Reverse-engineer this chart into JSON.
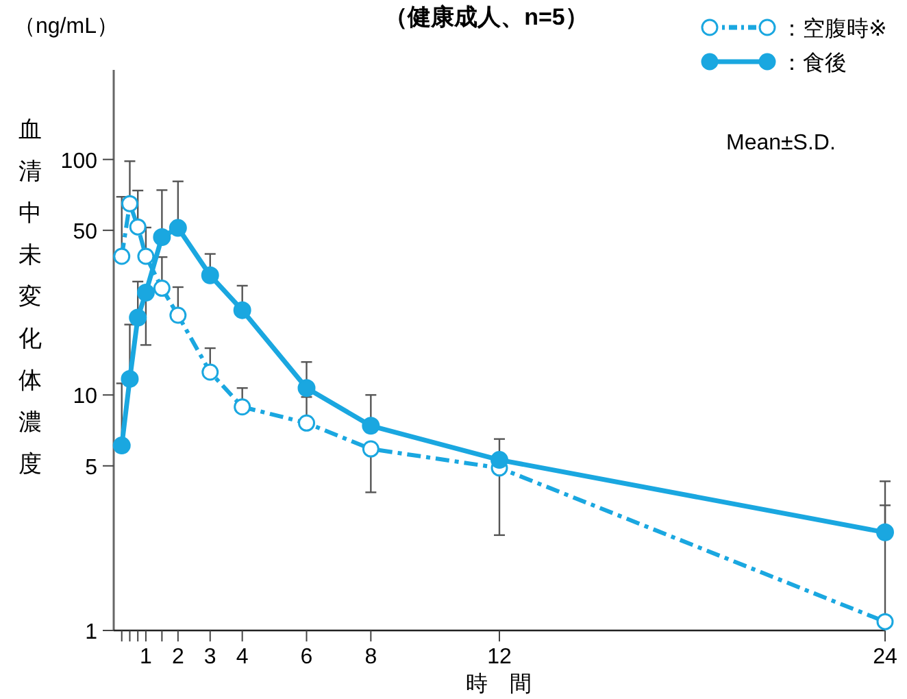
{
  "chart_data": {
    "type": "line",
    "title": "（健康成人、n=5）",
    "xlabel": "時　間",
    "ylabel": "血清中未変化体濃度",
    "annotations": [
      "（ng/mL）",
      "Mean±S.D."
    ],
    "x": [
      0.25,
      0.5,
      0.75,
      1,
      1.5,
      2,
      3,
      4,
      6,
      8,
      12,
      24
    ],
    "series": [
      {
        "name": "：空腹時※",
        "color": "#1aa7e0",
        "line_style": "dashed",
        "values": [
          38.8,
          64.9,
          51.7,
          38.8,
          28.4,
          21.8,
          12.5,
          8.9,
          7.6,
          5.9,
          4.9,
          1.09
        ],
        "errors": [
          [
            38.8,
            69.4
          ],
          [
            64.9,
            98.3
          ],
          [
            51.7,
            73.8
          ],
          [
            38.8,
            51.4
          ],
          [
            28.4,
            38.5
          ],
          [
            21.8,
            28.7
          ],
          [
            12.5,
            15.8
          ],
          [
            8.9,
            10.7
          ],
          [
            7.6,
            9.8
          ],
          [
            3.86,
            5.9
          ],
          [
            2.54,
            4.9
          ],
          [
            1.09,
            3.4
          ]
        ]
      },
      {
        "name": "：食後",
        "color": "#1aa7e0",
        "line_style": "solid",
        "values": [
          6.1,
          11.7,
          21.3,
          27.2,
          46.8,
          51.2,
          32.2,
          22.9,
          10.7,
          7.4,
          5.3,
          2.61
        ],
        "errors": [
          [
            6.1,
            11.2
          ],
          [
            11.7,
            19.9
          ],
          [
            21.3,
            30.3
          ],
          [
            16.3,
            27.2
          ],
          [
            46.8,
            74.1
          ],
          [
            51.2,
            80.7
          ],
          [
            32.2,
            39.7
          ],
          [
            22.9,
            29.1
          ],
          [
            10.7,
            13.8
          ],
          [
            7.4,
            10.0
          ],
          [
            5.3,
            6.5
          ],
          [
            2.61,
            4.3
          ]
        ]
      }
    ],
    "marker": "circle",
    "log": "y",
    "grid": false,
    "legend": "top right",
    "xlim": [
      0,
      24
    ],
    "ylim": [
      1,
      240
    ],
    "xticks": [
      {
        "value": 0.25,
        "label": null
      },
      {
        "value": 0.5,
        "label": null
      },
      {
        "value": 0.75,
        "label": null
      },
      1,
      {
        "value": 1.5,
        "label": null
      },
      2,
      3,
      4,
      6,
      8,
      12,
      24
    ],
    "yticks": [
      1,
      5,
      10,
      50,
      100
    ]
  }
}
